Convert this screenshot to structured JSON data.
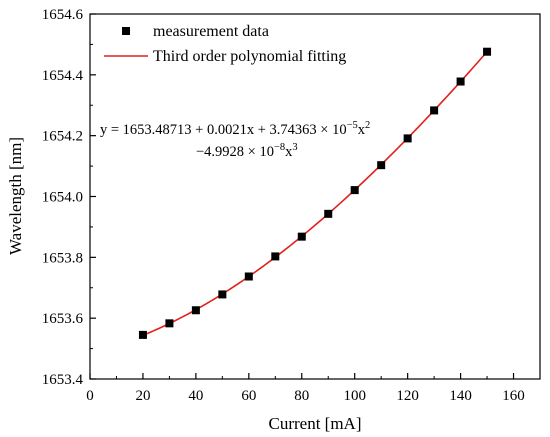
{
  "chart_data": {
    "type": "scatter",
    "xlabel": "Current [mA]",
    "ylabel": "Wavelength [nm]",
    "xlim": [
      0,
      170
    ],
    "ylim": [
      1653.4,
      1654.6
    ],
    "x_ticks": [
      0,
      20,
      40,
      60,
      80,
      100,
      120,
      140,
      160
    ],
    "y_ticks": [
      1653.4,
      1653.6,
      1653.8,
      1654.0,
      1654.2,
      1654.4,
      1654.6
    ],
    "y_tick_labels": [
      "1653.4",
      "1653.6",
      "1653.8",
      "1654.0",
      "1654.2",
      "1654.4",
      "1654.6"
    ],
    "grid": false,
    "legend_position": "top-left",
    "series": [
      {
        "name": "measurement data",
        "kind": "scatter",
        "marker": "square",
        "color": "#000000",
        "x": [
          20,
          30,
          40,
          50,
          60,
          70,
          80,
          90,
          100,
          110,
          120,
          130,
          140,
          150
        ],
        "y": [
          1653.545,
          1653.583,
          1653.626,
          1653.678,
          1653.737,
          1653.803,
          1653.868,
          1653.943,
          1654.021,
          1654.103,
          1654.191,
          1654.283,
          1654.378,
          1654.476
        ]
      },
      {
        "name": "Third order polynomial fitting",
        "kind": "line",
        "color": "#e0201b",
        "x_range": [
          20,
          150
        ],
        "coefficients": [
          1653.48713,
          0.0021,
          3.74363e-05,
          -4.9928e-08
        ]
      }
    ],
    "annotation": {
      "line1": "y = 1653.48713 + 0.0021x + 3.74363 × 10",
      "line1_exp": "−5",
      "line1_end": "x",
      "line1_end_exp": "2",
      "line2": "−4.9928 × 10",
      "line2_exp": "−8",
      "line2_end": "x",
      "line2_end_exp": "3"
    }
  }
}
